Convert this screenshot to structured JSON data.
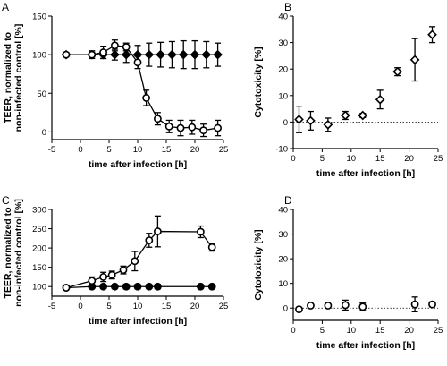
{
  "colors": {
    "ink": "#000000",
    "background": "#ffffff"
  },
  "chart_data": [
    {
      "panel": "A",
      "type": "line",
      "ylabel": "TEER, normalized to\nnon-infected control [%]",
      "xlabel": "time after infection [h]",
      "xlim": [
        -5,
        25
      ],
      "ylim": [
        -10,
        150
      ],
      "xticks": [
        -5,
        0,
        5,
        10,
        15,
        20,
        25
      ],
      "yticks": [
        0,
        50,
        100,
        150
      ],
      "tick_labels_y": [
        "0",
        "50",
        "100",
        "150"
      ],
      "tick_labels_x": [
        "-5",
        "0",
        "5",
        "10",
        "15",
        "20",
        "25"
      ],
      "series": [
        {
          "marker": "diamond-filled",
          "x": [
            -2.5,
            2,
            4,
            6,
            8,
            10,
            12,
            14,
            16,
            18,
            20,
            22,
            24
          ],
          "y": [
            100,
            100,
            100,
            100,
            100,
            100,
            100,
            100,
            100,
            100,
            100,
            100,
            100
          ],
          "err": [
            0,
            3,
            5,
            7,
            10,
            12,
            15,
            16,
            17,
            18,
            18,
            17,
            15
          ]
        },
        {
          "marker": "circle-open",
          "x": [
            -2.5,
            2,
            4,
            6,
            8,
            10,
            11.5,
            13.5,
            15.5,
            17.5,
            19.5,
            21.5,
            24
          ],
          "y": [
            100,
            100,
            103,
            112,
            110,
            90,
            44,
            17,
            7,
            5,
            6,
            2,
            5
          ],
          "err": [
            0,
            5,
            8,
            7,
            5,
            8,
            10,
            8,
            8,
            10,
            9,
            8,
            10
          ]
        }
      ]
    },
    {
      "panel": "B",
      "type": "scatter",
      "ylabel": "Cytotoxicity [%]",
      "xlabel": "time after infection [h]",
      "xlim": [
        0,
        25
      ],
      "ylim": [
        -10,
        40
      ],
      "xticks": [
        0,
        5,
        10,
        15,
        20,
        25
      ],
      "yticks": [
        -10,
        0,
        10,
        20,
        30,
        40
      ],
      "tick_labels_y": [
        "-10",
        "0",
        "10",
        "20",
        "30",
        "40"
      ],
      "tick_labels_x": [
        "0",
        "5",
        "10",
        "15",
        "20",
        "25"
      ],
      "zero_line": true,
      "series": [
        {
          "marker": "diamond-open",
          "x": [
            1,
            3,
            6,
            9,
            12,
            15,
            18,
            21,
            24
          ],
          "y": [
            1,
            0.5,
            -1,
            2.5,
            2.5,
            8.5,
            19,
            23.5,
            33
          ],
          "err": [
            5,
            3.5,
            2.5,
            1.5,
            0.8,
            3.5,
            1.5,
            8,
            3
          ]
        }
      ]
    },
    {
      "panel": "C",
      "type": "line",
      "ylabel": "TEER, normalized to\nnon-infected control [%]",
      "xlabel": "time after infection [h]",
      "xlim": [
        -5,
        25
      ],
      "ylim": [
        75,
        300
      ],
      "xticks": [
        -5,
        0,
        5,
        10,
        15,
        20,
        25
      ],
      "yticks": [
        100,
        150,
        200,
        250,
        300
      ],
      "tick_labels_y": [
        "100",
        "150",
        "200",
        "250",
        "300"
      ],
      "tick_labels_x": [
        "-5",
        "0",
        "5",
        "10",
        "15",
        "20",
        "25"
      ],
      "series": [
        {
          "marker": "circle-filled",
          "x": [
            -2.5,
            2,
            4,
            6,
            8,
            10,
            12,
            13.5,
            21,
            23
          ],
          "y": [
            97,
            100,
            100,
            100,
            100,
            100,
            100,
            100,
            100,
            100
          ],
          "err": [
            0,
            4,
            5,
            4,
            6,
            6,
            5,
            6,
            3,
            3
          ]
        },
        {
          "marker": "circle-open",
          "x": [
            -2.5,
            2,
            4,
            5.5,
            7.5,
            9.5,
            12,
            13.5,
            21,
            23
          ],
          "y": [
            97,
            115,
            125,
            130,
            143,
            166,
            220,
            243,
            242,
            202
          ],
          "err": [
            0,
            10,
            12,
            10,
            10,
            25,
            18,
            40,
            15,
            10
          ]
        }
      ]
    },
    {
      "panel": "D",
      "type": "scatter",
      "ylabel": "Cytotoxicity [%]",
      "xlabel": "time after infection [h]",
      "xlim": [
        0,
        25
      ],
      "ylim": [
        -5,
        40
      ],
      "xticks": [
        0,
        5,
        10,
        15,
        20,
        25
      ],
      "yticks": [
        0,
        10,
        20,
        30,
        40
      ],
      "tick_labels_y": [
        "0",
        "10",
        "20",
        "30",
        "40"
      ],
      "tick_labels_x": [
        "0",
        "5",
        "10",
        "15",
        "20",
        "25"
      ],
      "zero_line": true,
      "series": [
        {
          "marker": "circle-open",
          "x": [
            1,
            3,
            6,
            9,
            12,
            21,
            24
          ],
          "y": [
            -0.5,
            1,
            1,
            1.2,
            0.5,
            1.5,
            1.5
          ],
          "err": [
            0.5,
            0.5,
            0.5,
            2,
            1.5,
            3,
            1
          ]
        }
      ]
    }
  ]
}
